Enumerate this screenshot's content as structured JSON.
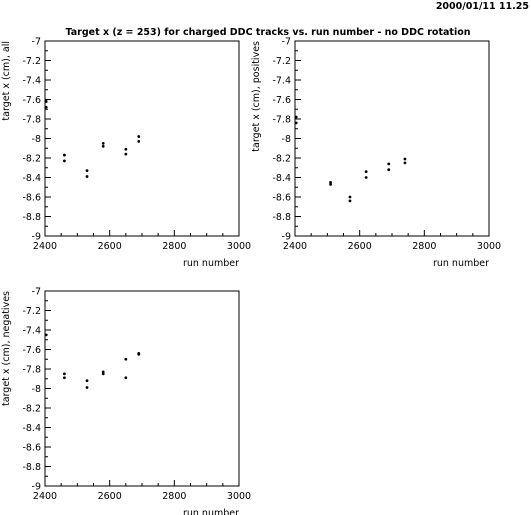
{
  "header": {
    "timestamp": "2000/01/11   11.25",
    "title": "Target x (z = 253) for charged DDC tracks vs. run number - no DDC rotation"
  },
  "chart_data": [
    {
      "type": "scatter",
      "xlabel": "run number",
      "ylabel": "target x (cm), all",
      "xlim": [
        2400,
        3000
      ],
      "ylim": [
        -9,
        -7
      ],
      "x_ticks": [
        "2400",
        "2600",
        "2800",
        "3000"
      ],
      "y_ticks": [
        "-7",
        "-7.2",
        "-7.4",
        "-7.6",
        "-7.8",
        "-8",
        "-8.2",
        "-8.4",
        "-8.6",
        "-8.8",
        "-9"
      ],
      "series": [
        {
          "points": [
            {
              "x": 2400,
              "y": -7.62
            },
            {
              "x": 2400,
              "y": -7.68
            },
            {
              "x": 2460,
              "y": -8.17
            },
            {
              "x": 2460,
              "y": -8.23
            },
            {
              "x": 2530,
              "y": -8.33
            },
            {
              "x": 2530,
              "y": -8.39
            },
            {
              "x": 2580,
              "y": -8.05
            },
            {
              "x": 2580,
              "y": -8.08
            },
            {
              "x": 2650,
              "y": -8.11
            },
            {
              "x": 2650,
              "y": -8.16
            },
            {
              "x": 2690,
              "y": -7.98
            },
            {
              "x": 2690,
              "y": -8.03
            }
          ]
        }
      ]
    },
    {
      "type": "scatter",
      "xlabel": "run number",
      "ylabel": "target x (cm), positives",
      "xlim": [
        2400,
        3000
      ],
      "ylim": [
        -9,
        -7
      ],
      "x_ticks": [
        "2400",
        "2600",
        "2800",
        "3000"
      ],
      "y_ticks": [
        "-7",
        "-7.2",
        "-7.4",
        "-7.6",
        "-7.8",
        "-8",
        "-8.2",
        "-8.4",
        "-8.6",
        "-8.8",
        "-9"
      ],
      "series": [
        {
          "points": [
            {
              "x": 2400,
              "y": -7.78
            },
            {
              "x": 2400,
              "y": -7.84
            },
            {
              "x": 2510,
              "y": -8.45
            },
            {
              "x": 2510,
              "y": -8.47
            },
            {
              "x": 2570,
              "y": -8.6
            },
            {
              "x": 2570,
              "y": -8.64
            },
            {
              "x": 2620,
              "y": -8.34
            },
            {
              "x": 2620,
              "y": -8.4
            },
            {
              "x": 2690,
              "y": -8.26
            },
            {
              "x": 2690,
              "y": -8.32
            },
            {
              "x": 2740,
              "y": -8.21
            },
            {
              "x": 2740,
              "y": -8.25
            }
          ]
        }
      ]
    },
    {
      "type": "scatter",
      "xlabel": "run number",
      "ylabel": "target x (cm), negatives",
      "xlim": [
        2400,
        3000
      ],
      "ylim": [
        -9,
        -7
      ],
      "x_ticks": [
        "2400",
        "2600",
        "2800",
        "3000"
      ],
      "y_ticks": [
        "-7",
        "-7.2",
        "-7.4",
        "-7.6",
        "-7.8",
        "-8",
        "-8.2",
        "-8.4",
        "-8.6",
        "-8.8",
        "-9"
      ],
      "series": [
        {
          "points": [
            {
              "x": 2400,
              "y": -7.45
            },
            {
              "x": 2460,
              "y": -7.85
            },
            {
              "x": 2460,
              "y": -7.89
            },
            {
              "x": 2530,
              "y": -7.92
            },
            {
              "x": 2530,
              "y": -7.99
            },
            {
              "x": 2580,
              "y": -7.83
            },
            {
              "x": 2580,
              "y": -7.85
            },
            {
              "x": 2650,
              "y": -7.7
            },
            {
              "x": 2650,
              "y": -7.89
            },
            {
              "x": 2690,
              "y": -7.64
            },
            {
              "x": 2690,
              "y": -7.65
            }
          ]
        }
      ]
    }
  ]
}
